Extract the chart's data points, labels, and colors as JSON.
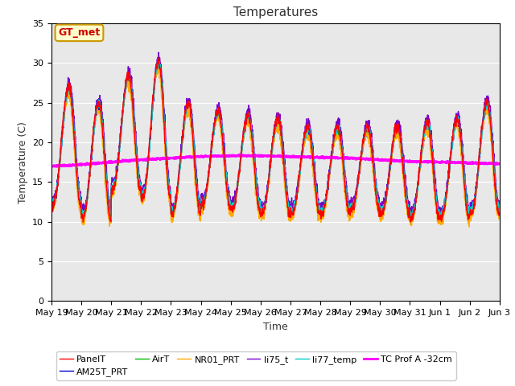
{
  "title": "Temperatures",
  "xlabel": "Time",
  "ylabel": "Temperature (C)",
  "ylim": [
    0,
    35
  ],
  "yticks": [
    0,
    5,
    10,
    15,
    20,
    25,
    30,
    35
  ],
  "x_labels": [
    "May 19",
    "May 20",
    "May 21",
    "May 22",
    "May 23",
    "May 24",
    "May 25",
    "May 26",
    "May 27",
    "May 28",
    "May 29",
    "May 30",
    "May 31",
    "Jun 1",
    "Jun 2",
    "Jun 3"
  ],
  "bg_color": "#e8e8e8",
  "series_colors": {
    "PanelT": "#ff0000",
    "AM25T_PRT": "#0000cc",
    "AirT": "#00bb00",
    "NR01_PRT": "#ffaa00",
    "li75_t": "#7700cc",
    "li77_temp": "#00cccc",
    "TC_Prof_A": "#ff00ff"
  },
  "annotation_label": "GT_met",
  "annotation_color": "#cc0000",
  "annotation_bg": "#ffffcc",
  "annotation_border": "#cc9900",
  "peak_heights": [
    27,
    25,
    28.5,
    30.2,
    25,
    24,
    23.5,
    23,
    22,
    22,
    22,
    22,
    22.5,
    23,
    25,
    25.5
  ],
  "min_heights": [
    12,
    10.5,
    14,
    13,
    11,
    12,
    11.5,
    11,
    11,
    11,
    11.5,
    11,
    10.5,
    10.5,
    11,
    11.5
  ],
  "tc_prof_values": [
    17.0,
    17.2,
    17.5,
    17.8,
    18.0,
    18.2,
    18.3,
    18.3,
    18.2,
    18.1,
    18.0,
    17.8,
    17.6,
    17.5,
    17.4,
    17.3
  ]
}
